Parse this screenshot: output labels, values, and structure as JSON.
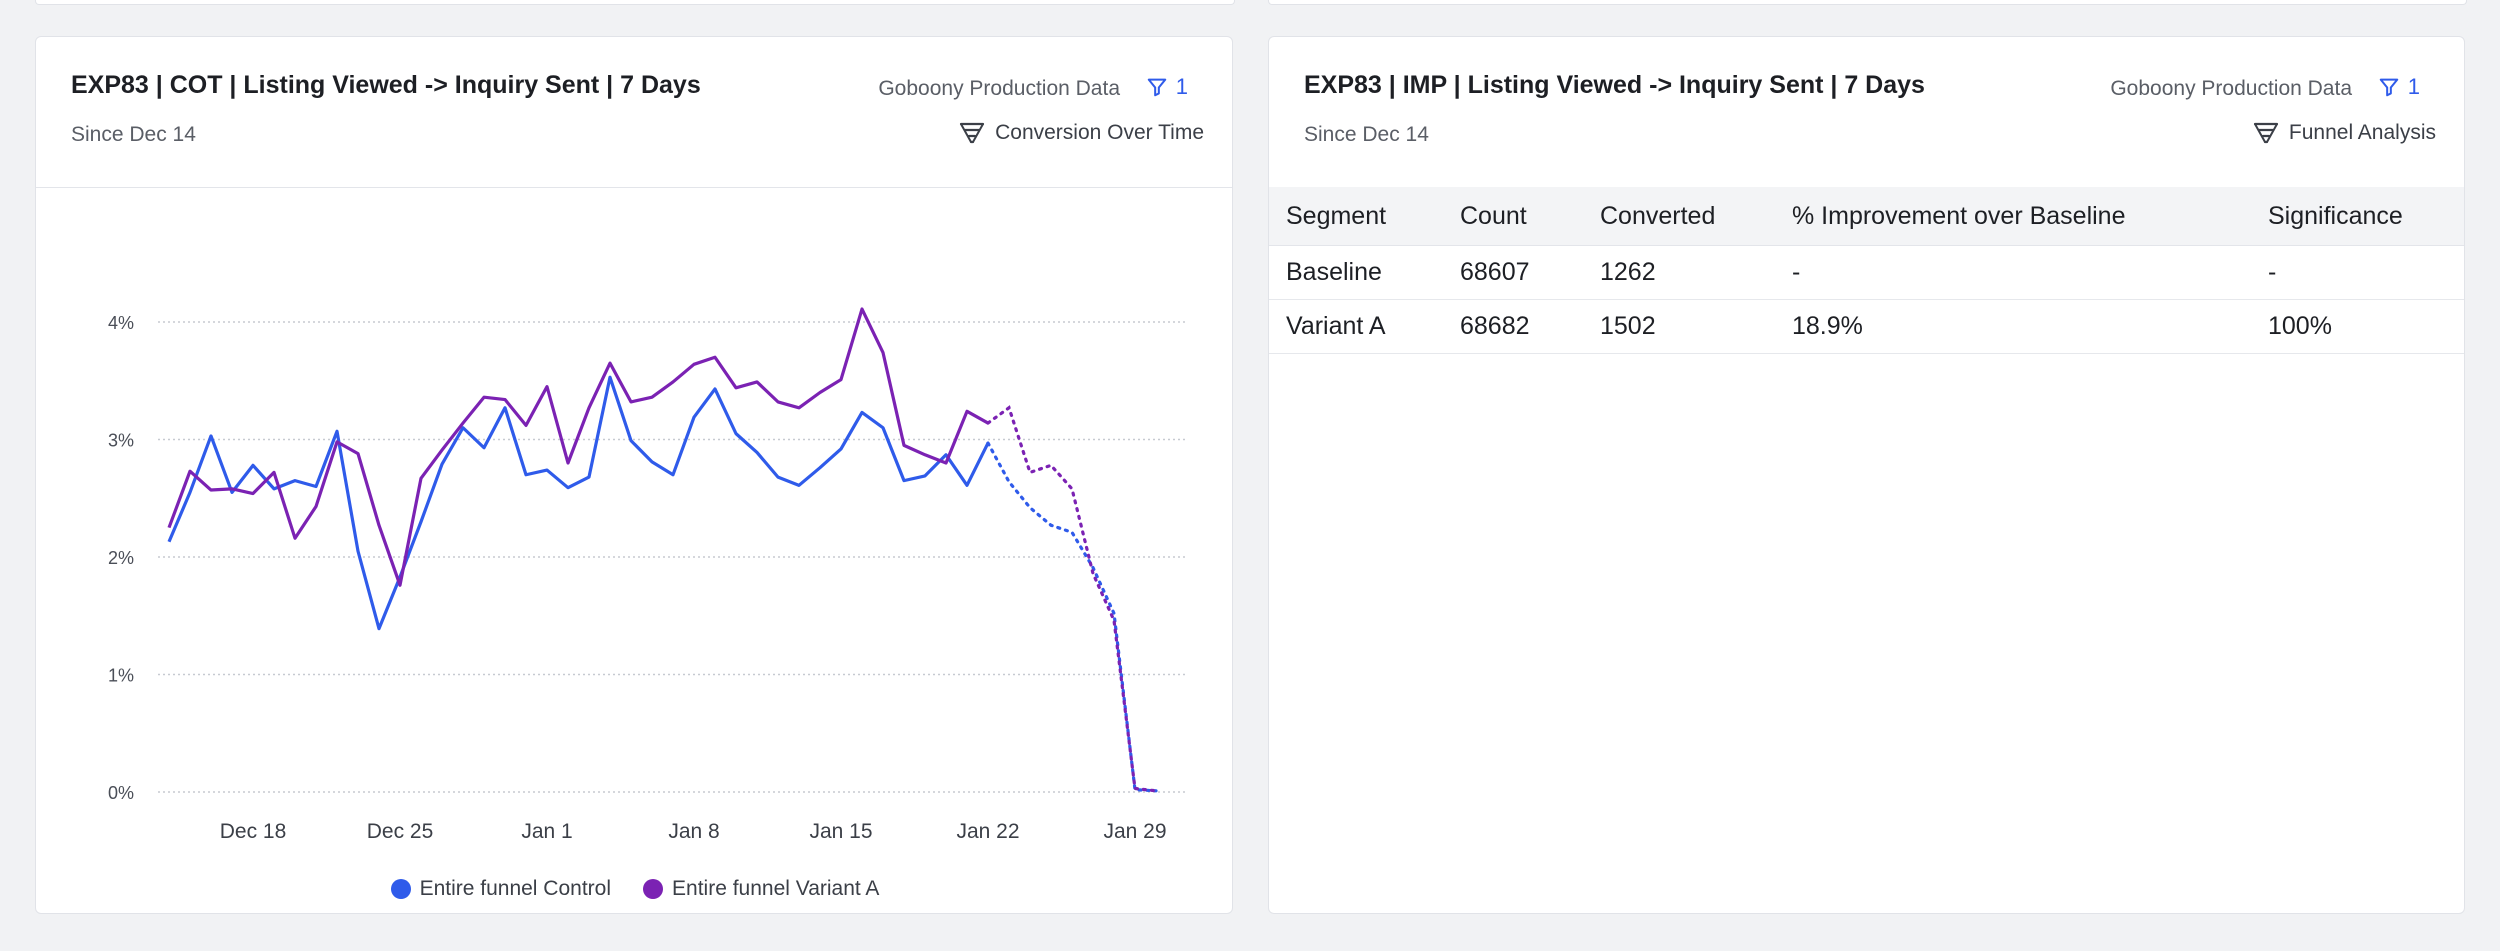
{
  "colors": {
    "control": "#2f5bea",
    "variant": "#7b22b3",
    "accent": "#2f5bea"
  },
  "left_card": {
    "title": "EXP83 | COT | Listing Viewed -> Inquiry Sent | 7 Days",
    "subtitle": "Since Dec 14",
    "source": "Goboony Production Data",
    "filter_count": "1",
    "viz_label": "Conversion Over Time",
    "viz_icon": "funnel-icon"
  },
  "right_card": {
    "title": "EXP83 | IMP | Listing Viewed -> Inquiry Sent | 7 Days",
    "subtitle": "Since Dec 14",
    "source": "Goboony Production Data",
    "filter_count": "1",
    "viz_label": "Funnel Analysis",
    "viz_icon": "funnel-icon",
    "table": {
      "headers": [
        "Segment",
        "Count",
        "Converted",
        "% Improvement over Baseline",
        "Significance"
      ],
      "rows": [
        [
          "Baseline",
          "68607",
          "1262",
          "-",
          "-"
        ],
        [
          "Variant A",
          "68682",
          "1502",
          "18.9%",
          "100%"
        ]
      ]
    }
  },
  "chart_data": {
    "type": "line",
    "title": "EXP83 | COT | Listing Viewed -> Inquiry Sent | 7 Days",
    "xlabel": "",
    "ylabel": "",
    "x_start": "Dec 14",
    "x_end": "Jan 29",
    "ylim": [
      0,
      4.4
    ],
    "y_ticks": [
      "0%",
      "1%",
      "2%",
      "3%",
      "4%"
    ],
    "y_tick_values": [
      0,
      1,
      2,
      3,
      4
    ],
    "x_ticks": [
      "Dec 18",
      "Dec 25",
      "Jan 1",
      "Jan 8",
      "Jan 15",
      "Jan 22",
      "Jan 29"
    ],
    "x_tick_days": [
      4,
      11,
      18,
      25,
      32,
      39,
      46
    ],
    "grid": true,
    "legend_position": "bottom-center",
    "solid_until_day": 39,
    "series": [
      {
        "name": "Entire funnel Control",
        "color": "#2f5bea",
        "values": [
          2.13,
          2.55,
          3.03,
          2.55,
          2.78,
          2.58,
          2.65,
          2.6,
          3.07,
          2.05,
          1.39,
          1.83,
          2.3,
          2.79,
          3.1,
          2.93,
          3.27,
          2.7,
          2.74,
          2.59,
          2.68,
          3.53,
          2.99,
          2.81,
          2.7,
          3.19,
          3.43,
          3.05,
          2.89,
          2.68,
          2.61,
          2.76,
          2.92,
          3.23,
          3.1,
          2.65,
          2.69,
          2.87,
          2.61,
          2.97,
          2.64,
          2.42,
          2.27,
          2.21,
          1.91,
          1.52,
          0.02,
          0.01
        ]
      },
      {
        "name": "Entire funnel Variant A",
        "color": "#7b22b3",
        "values": [
          2.25,
          2.73,
          2.57,
          2.58,
          2.54,
          2.72,
          2.16,
          2.43,
          2.98,
          2.88,
          2.27,
          1.76,
          2.67,
          2.91,
          3.14,
          3.36,
          3.34,
          3.12,
          3.45,
          2.8,
          3.27,
          3.65,
          3.32,
          3.36,
          3.49,
          3.64,
          3.7,
          3.44,
          3.49,
          3.32,
          3.27,
          3.4,
          3.51,
          4.11,
          3.74,
          2.95,
          2.87,
          2.8,
          3.24,
          3.14,
          3.27,
          2.72,
          2.78,
          2.58,
          1.86,
          1.46,
          0.03,
          0.01
        ]
      }
    ]
  }
}
